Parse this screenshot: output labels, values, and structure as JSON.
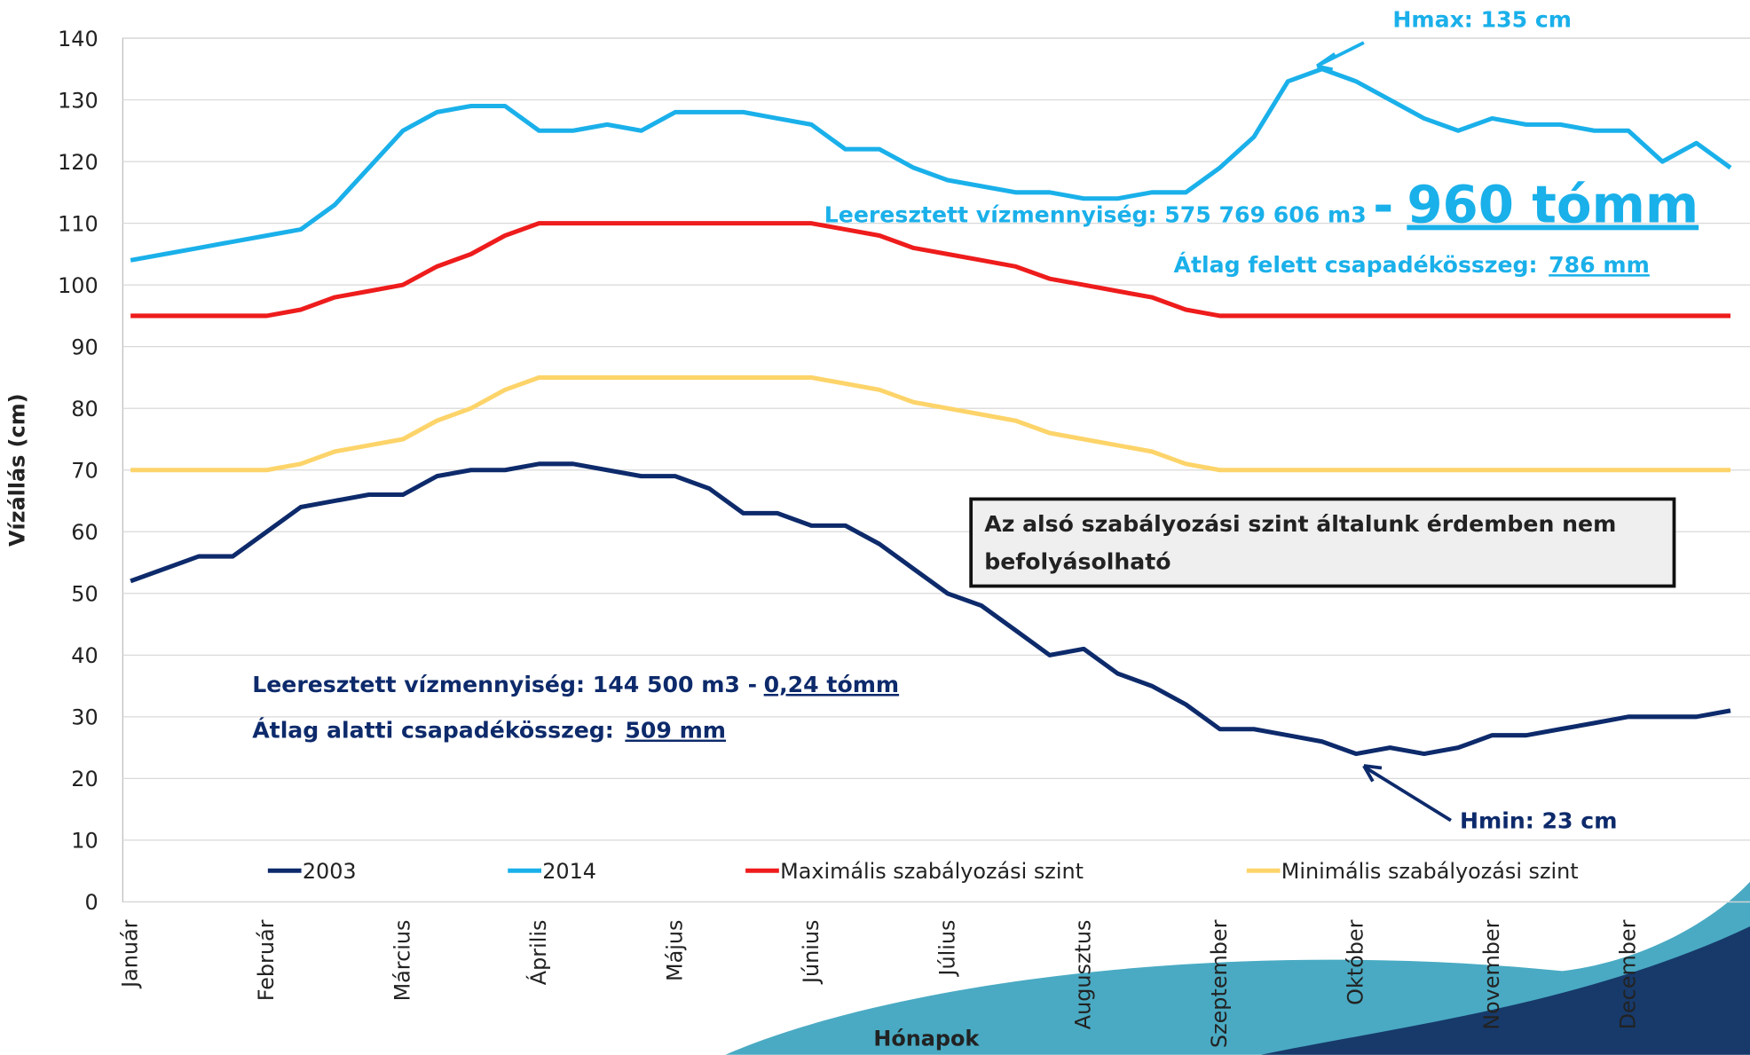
{
  "chart_data": {
    "type": "line",
    "y_label": "Vízállás (cm)",
    "x_label": "Hónapok",
    "categories": [
      "Január",
      null,
      null,
      null,
      "Február",
      null,
      null,
      null,
      "Március",
      null,
      null,
      null,
      "Április",
      null,
      null,
      null,
      "Május",
      null,
      null,
      null,
      "Június",
      null,
      null,
      null,
      "Július",
      null,
      null,
      null,
      "Augusztus",
      null,
      null,
      null,
      "Szeptember",
      null,
      null,
      null,
      "Október",
      null,
      null,
      null,
      "November",
      null,
      null,
      null,
      "December",
      null,
      null,
      null
    ],
    "series": [
      {
        "name": "2003",
        "color": "#0d2a6b",
        "values": [
          52,
          54,
          56,
          56,
          60,
          64,
          65,
          66,
          66,
          69,
          70,
          70,
          71,
          71,
          70,
          69,
          69,
          67,
          63,
          63,
          61,
          61,
          58,
          54,
          50,
          48,
          44,
          40,
          41,
          37,
          35,
          32,
          28,
          28,
          27,
          26,
          24,
          25,
          24,
          25,
          27,
          27,
          28,
          29,
          30,
          30,
          30,
          31
        ]
      },
      {
        "name": "2014",
        "color": "#1ab0ea",
        "values": [
          104,
          105,
          106,
          107,
          108,
          109,
          113,
          119,
          125,
          128,
          129,
          129,
          125,
          125,
          126,
          125,
          128,
          128,
          128,
          127,
          126,
          122,
          122,
          119,
          117,
          116,
          115,
          115,
          114,
          114,
          115,
          115,
          119,
          124,
          133,
          135,
          133,
          130,
          127,
          125,
          127,
          126,
          126,
          125,
          125,
          120,
          123,
          119
        ]
      },
      {
        "name": "Maximális szabályozási szint",
        "color": "#ee1c1c",
        "values": [
          95,
          95,
          95,
          95,
          95,
          96,
          98,
          99,
          100,
          103,
          105,
          108,
          110,
          110,
          110,
          110,
          110,
          110,
          110,
          110,
          110,
          109,
          108,
          106,
          105,
          104,
          103,
          101,
          100,
          99,
          98,
          96,
          95,
          95,
          95,
          95,
          95,
          95,
          95,
          95,
          95,
          95,
          95,
          95,
          95,
          95,
          95,
          95
        ]
      },
      {
        "name": "Minimális szabályozási szint",
        "color": "#fdd46a",
        "values": [
          70,
          70,
          70,
          70,
          70,
          71,
          73,
          74,
          75,
          78,
          80,
          83,
          85,
          85,
          85,
          85,
          85,
          85,
          85,
          85,
          85,
          84,
          83,
          81,
          80,
          79,
          78,
          76,
          75,
          74,
          73,
          71,
          70,
          70,
          70,
          70,
          70,
          70,
          70,
          70,
          70,
          70,
          70,
          70,
          70,
          70,
          70,
          70
        ]
      }
    ],
    "ylim": [
      0,
      140
    ],
    "yticks": [
      0,
      10,
      20,
      30,
      40,
      50,
      60,
      70,
      80,
      90,
      100,
      110,
      120,
      130,
      140
    ],
    "grid": true,
    "annotations": {
      "hmax": "Hmax: 135 cm",
      "top_volume": "Leeresztett vízmennyiség: 575 769 606  m3",
      "top_dash": "-",
      "top_tomm": "960 tómm",
      "top_rain_label": "Átlag felett csapadékösszeg:",
      "top_rain": "786 mm",
      "box_lines": [
        "Az alsó szabályozási szint általunk érdemben nem",
        "befolyásolható"
      ],
      "bottom_volume": "Leeresztett vízmennyiség: 144 500 m3 -",
      "bottom_tomm": "0,24 tómm",
      "bottom_rain_label": "Átlag alatti csapadékösszeg:",
      "bottom_rain": "509 mm",
      "hmin": "Hmin: 23 cm"
    }
  }
}
